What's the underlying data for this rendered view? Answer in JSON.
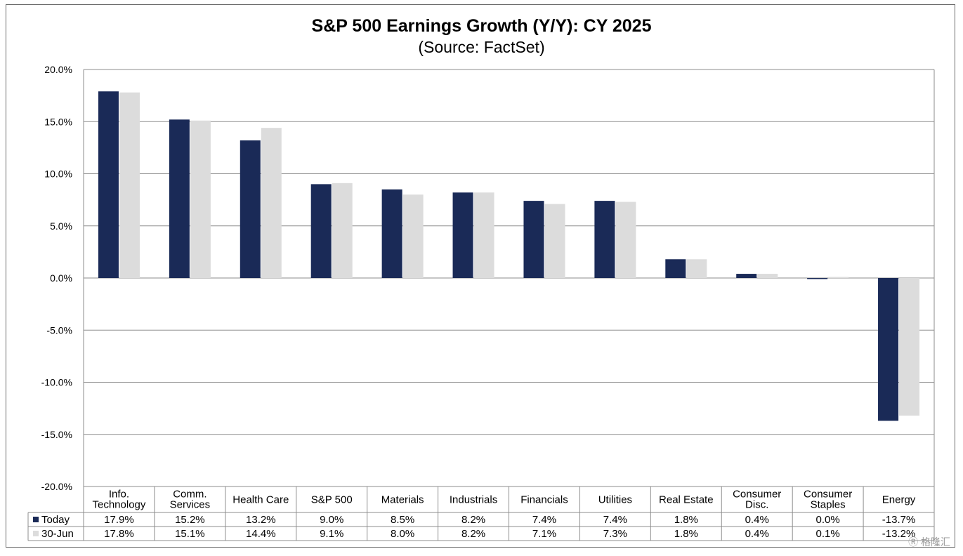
{
  "chart_data": {
    "type": "bar",
    "title": "S&P 500 Earnings Growth (Y/Y): CY 2025",
    "subtitle": "(Source: FactSet)",
    "categories": [
      "Info. Technology",
      "Comm. Services",
      "Health Care",
      "S&P 500",
      "Materials",
      "Industrials",
      "Financials",
      "Utilities",
      "Real Estate",
      "Consumer Disc.",
      "Consumer Staples",
      "Energy"
    ],
    "category_lines": [
      [
        "Info.",
        "Technology"
      ],
      [
        "Comm.",
        "Services"
      ],
      [
        "Health Care"
      ],
      [
        "S&P 500"
      ],
      [
        "Materials"
      ],
      [
        "Industrials"
      ],
      [
        "Financials"
      ],
      [
        "Utilities"
      ],
      [
        "Real Estate"
      ],
      [
        "Consumer",
        "Disc."
      ],
      [
        "Consumer",
        "Staples"
      ],
      [
        "Energy"
      ]
    ],
    "series": [
      {
        "name": "Today",
        "color": "#1a2a57",
        "values": [
          17.9,
          15.2,
          13.2,
          9.0,
          8.5,
          8.2,
          7.4,
          7.4,
          1.8,
          0.4,
          0.0,
          -13.7
        ],
        "labels": [
          "17.9%",
          "15.2%",
          "13.2%",
          "9.0%",
          "8.5%",
          "8.2%",
          "7.4%",
          "7.4%",
          "1.8%",
          "0.4%",
          "0.0%",
          "-13.7%"
        ]
      },
      {
        "name": "30-Jun",
        "color": "#dcdcdc",
        "values": [
          17.8,
          15.1,
          14.4,
          9.1,
          8.0,
          8.2,
          7.1,
          7.3,
          1.8,
          0.4,
          0.1,
          -13.2
        ],
        "labels": [
          "17.8%",
          "15.1%",
          "14.4%",
          "9.1%",
          "8.0%",
          "8.2%",
          "7.1%",
          "7.3%",
          "1.8%",
          "0.4%",
          "0.1%",
          "-13.2%"
        ]
      }
    ],
    "ylim": [
      -20,
      20
    ],
    "yticks": [
      20,
      15,
      10,
      5,
      0,
      -5,
      -10,
      -15,
      -20
    ],
    "ytick_labels": [
      "20.0%",
      "15.0%",
      "10.0%",
      "5.0%",
      "0.0%",
      "-5.0%",
      "-10.0%",
      "-15.0%",
      "-20.0%"
    ],
    "grid": true,
    "legend": "data-table"
  },
  "watermark": "格隆汇"
}
